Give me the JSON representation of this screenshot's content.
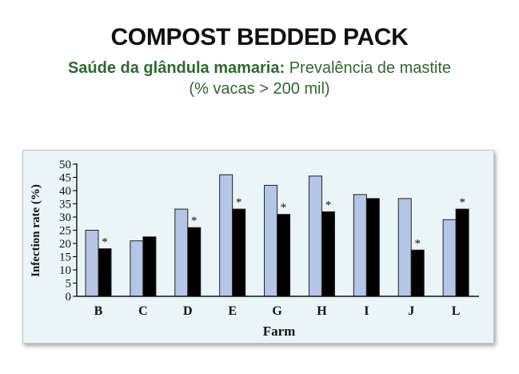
{
  "header": {
    "title": "COMPOST BEDDED PACK",
    "subtitle_bold": "Saúde da glândula mamaria:",
    "subtitle_rest": " Prevalência de mastite",
    "subtitle_line2": "(% vacas > 200 mil)"
  },
  "colors": {
    "subtitle": "#2e6a2e",
    "panel_bg": "#e9f5f7",
    "light_bar": "#b4c6e6",
    "dark_bar": "#000000"
  },
  "chart_data": {
    "type": "bar",
    "title": "",
    "xlabel": "Farm",
    "ylabel": "Infection rate (%)",
    "ylim": [
      0,
      50
    ],
    "yticks": [
      0,
      5,
      10,
      15,
      20,
      25,
      30,
      35,
      40,
      45,
      50
    ],
    "categories": [
      "B",
      "C",
      "D",
      "E",
      "G",
      "H",
      "I",
      "J",
      "L"
    ],
    "series": [
      {
        "color": "#b4c6e6",
        "values": [
          25,
          21,
          33,
          46,
          42,
          45.5,
          38.5,
          37,
          29
        ]
      },
      {
        "color": "#000000",
        "values": [
          18,
          22.5,
          26,
          33,
          31,
          32,
          37,
          17.5,
          33
        ]
      }
    ],
    "annotations": [
      "*",
      "",
      "*",
      "*",
      "*",
      "*",
      "",
      "*",
      "*"
    ],
    "grid": false,
    "legend": "none"
  }
}
